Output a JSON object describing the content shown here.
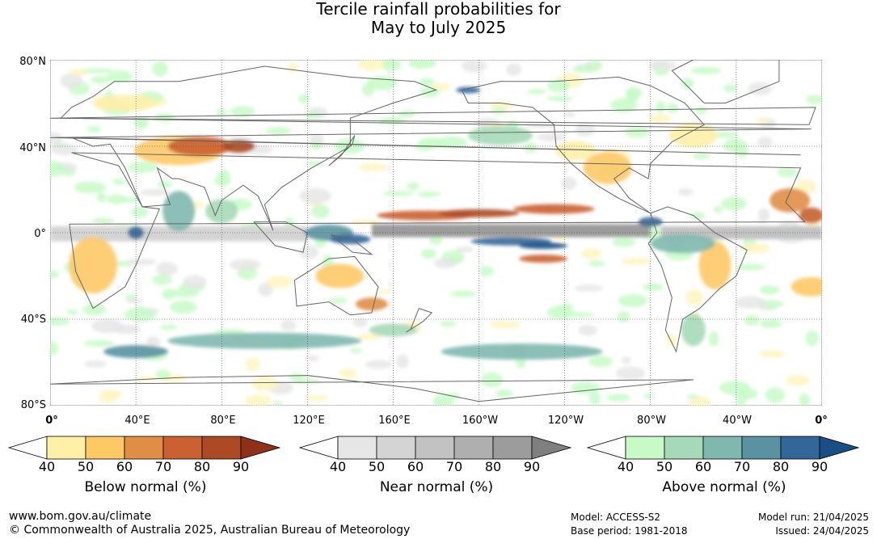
{
  "title": {
    "line1": "Tercile rainfall probabilities for",
    "line2": "May to July 2025"
  },
  "axes": {
    "lat_ticks": [
      "80°N",
      "40°N",
      "0°",
      "40°S",
      "80°S"
    ],
    "lon_ticks": [
      "0°",
      "40°E",
      "80°E",
      "120°E",
      "160°E",
      "160°W",
      "120°W",
      "80°W",
      "40°W",
      "0°"
    ]
  },
  "colorbars": [
    {
      "id": "below",
      "label": "Below normal (%)",
      "ticks": [
        "40",
        "50",
        "60",
        "70",
        "80",
        "90"
      ],
      "colors": [
        "#fff0a8",
        "#fdc966",
        "#e08e45",
        "#cb6132",
        "#ad4a26",
        "#8f3119"
      ]
    },
    {
      "id": "near",
      "label": "Near normal (%)",
      "ticks": [
        "40",
        "50",
        "60",
        "70",
        "80",
        "90"
      ],
      "colors": [
        "#e6e6e6",
        "#d4d4d4",
        "#c2c2c2",
        "#afafaf",
        "#9c9c9c",
        "#7f7f7f"
      ]
    },
    {
      "id": "above",
      "label": "Above normal (%)",
      "ticks": [
        "40",
        "50",
        "60",
        "70",
        "80",
        "90"
      ],
      "colors": [
        "#c8fac8",
        "#a6d9b8",
        "#80b8b0",
        "#5a92a2",
        "#336699",
        "#1a4f86"
      ]
    }
  ],
  "footer": {
    "website": "www.bom.gov.au/climate",
    "copyright": "© Commonwealth of Australia 2025, Australian Bureau of Meteorology",
    "model": "Model: ACCESS-S2",
    "base_period": "Base period: 1981-2018",
    "model_run": "Model run: 21/04/2025",
    "issued": "Issued: 24/04/2025"
  }
}
